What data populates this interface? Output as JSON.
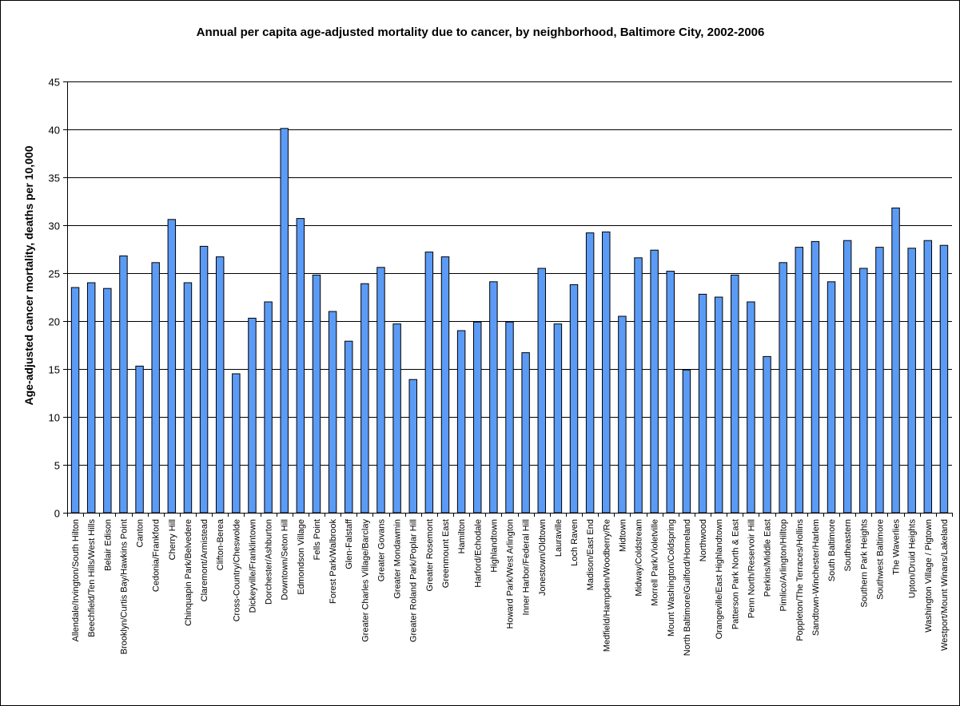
{
  "chart_data": {
    "type": "bar",
    "title": "Annual per capita age-adjusted mortality due to cancer, by neighborhood, Baltimore City, 2002-2006",
    "xlabel": "",
    "ylabel": "Age-adjusted cancer mortality, deaths per 10,000",
    "ylim": [
      0,
      45
    ],
    "yticks": [
      0,
      5,
      10,
      15,
      20,
      25,
      30,
      35,
      40,
      45
    ],
    "grid": true,
    "legend": "none",
    "bar_color": "#5B9BF5",
    "bar_edge_color": "#000000",
    "categories": [
      "Allendale/Irvington/South Hilton",
      "Beechfield/Ten Hills/West Hills",
      "Belair Edison",
      "Brooklyn/Curtis Bay/Hawkins Point",
      "Canton",
      "Cedonia/Frankford",
      "Cherry Hill",
      "Chinquapin Park/Belvedere",
      "Claremont/Armistead",
      "Clifton-Berea",
      "Cross-Country/Cheswolde",
      "Dickeyville/Franklintown",
      "Dorchester/Ashburton",
      "Downtown/Seton Hill",
      "Edmondson Village",
      "Fells Point",
      "Forest Park/Walbrook",
      "Glen-Falstaff",
      "Greater Charles Village/Barclay",
      "Greater Govans",
      "Greater Mondawmin",
      "Greater Roland Park/Poplar Hill",
      "Greater Rosemont",
      "Greenmount East",
      "Hamilton",
      "Harford/Echodale",
      "Highlandtown",
      "Howard Park/West Arlington",
      "Inner Harbor/Federal Hill",
      "Jonestown/Oldtown",
      "Lauraville",
      "Loch Raven",
      "Madison/East End",
      "Medfield/Hampden/Woodberry/Re",
      "Midtown",
      "Midway/Coldstream",
      "Morrell Park/Violetville",
      "Mount Washington/Coldspring",
      "North Baltimore/Guilford/Homeland",
      "Northwood",
      "Orangeville/East Highlandtown",
      "Patterson Park North & East",
      "Penn North/Reservoir Hill",
      "Perkins/Middle East",
      "Pimlico/Arlington/Hilltop",
      "Poppleton/The Terraces/Hollins",
      "Sandtown-Winchester/Harlem",
      "South Baltimore",
      "Southeastern",
      "Southern Park Heights",
      "Southwest Baltimore",
      "The Waverlies",
      "Upton/Druid Heights",
      "Washington Village / Pigtown",
      "Westport/Mount Winans/Lakeland"
    ],
    "values": [
      23.5,
      24.0,
      23.4,
      26.8,
      15.3,
      26.1,
      30.6,
      24.0,
      27.8,
      26.7,
      14.5,
      20.3,
      22.0,
      40.1,
      30.7,
      24.8,
      21.0,
      17.9,
      23.9,
      25.6,
      19.7,
      13.9,
      27.2,
      26.7,
      19.0,
      19.9,
      24.1,
      19.9,
      16.7,
      25.5,
      19.7,
      23.8,
      29.2,
      29.3,
      20.5,
      26.6,
      27.4,
      25.2,
      14.9,
      22.8,
      22.5,
      24.8,
      22.0,
      16.3,
      26.1,
      27.7,
      28.3,
      24.1,
      28.4,
      25.5,
      27.7,
      31.8,
      27.6,
      28.4,
      27.9
    ]
  }
}
